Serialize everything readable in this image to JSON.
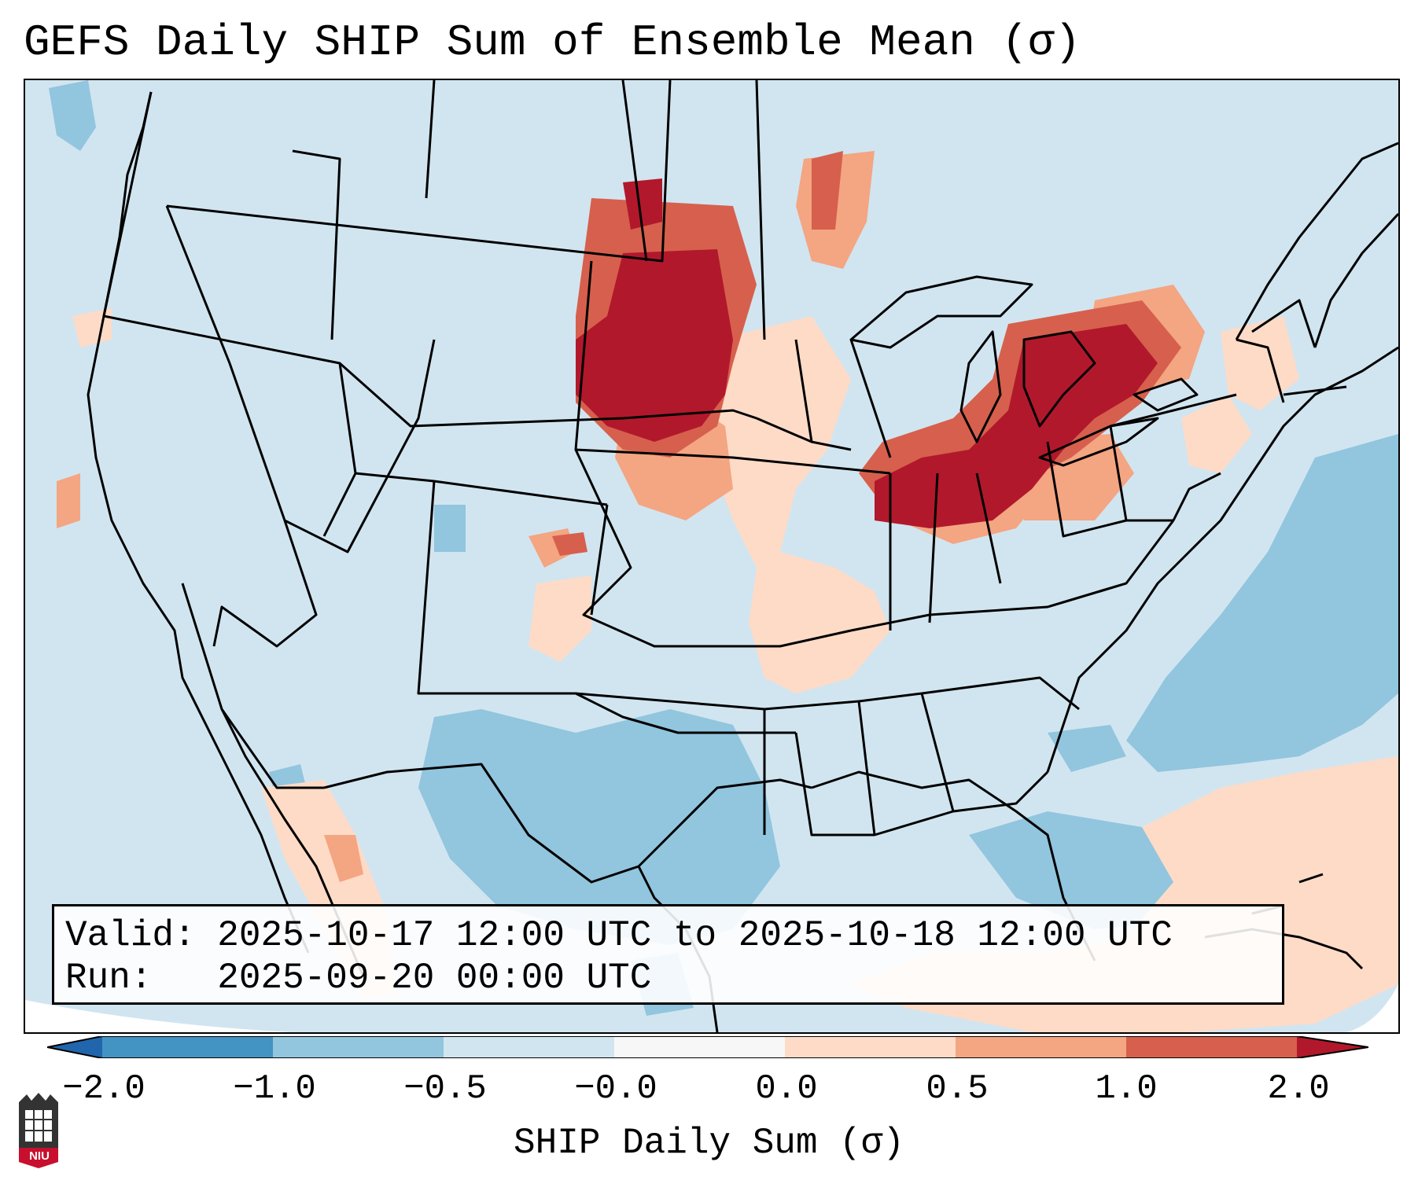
{
  "title": "GEFS Daily SHIP Sum of Ensemble Mean (σ)",
  "info": {
    "valid_label": "Valid:",
    "valid_value": "2025-10-17 12:00 UTC to 2025-10-18 12:00 UTC",
    "run_label": "Run:",
    "run_value": "2025-09-20 00:00 UTC"
  },
  "colorbar": {
    "label": "SHIP Daily Sum (σ)",
    "tick_labels": [
      "−2.0",
      "−1.0",
      "−0.5",
      "−0.0",
      "0.0",
      "0.5",
      "1.0",
      "2.0"
    ],
    "bins": [
      {
        "range": "< -2.0",
        "color": "#2166ac"
      },
      {
        "range": "-2.0 to -1.0",
        "color": "#4393c3"
      },
      {
        "range": "-1.0 to -0.5",
        "color": "#92c5de"
      },
      {
        "range": "-0.5 to 0.0",
        "color": "#d1e5f0"
      },
      {
        "range": "0.0 (neutral)",
        "color": "#f7f7f7"
      },
      {
        "range": "0.0 to 0.5",
        "color": "#fddbc7"
      },
      {
        "range": "0.5 to 1.0",
        "color": "#f4a582"
      },
      {
        "range": "1.0 to 2.0",
        "color": "#d6604d"
      },
      {
        "range": "> 2.0",
        "color": "#b2182b"
      }
    ]
  },
  "logo": {
    "text": "NIU",
    "name": "niu-logo"
  },
  "map": {
    "region": "Contiguous United States",
    "background_color": "#d1e5f0",
    "features": [
      "state-boundaries",
      "coastlines",
      "great-lakes"
    ],
    "anomaly_regions": [
      {
        "area": "Dakotas / Nebraska",
        "level": "> 2.0"
      },
      {
        "area": "Ohio Valley / Great Lakes",
        "level": "> 2.0"
      },
      {
        "area": "Northern Minnesota",
        "level": "1.0 to 2.0"
      },
      {
        "area": "Gulf of Mexico / Texas",
        "level": "-1.0 to -0.5"
      },
      {
        "area": "Western Atlantic",
        "level": "-1.0 to -0.5"
      },
      {
        "area": "Caribbean / Bahamas",
        "level": "0.0 to 0.5"
      }
    ]
  }
}
